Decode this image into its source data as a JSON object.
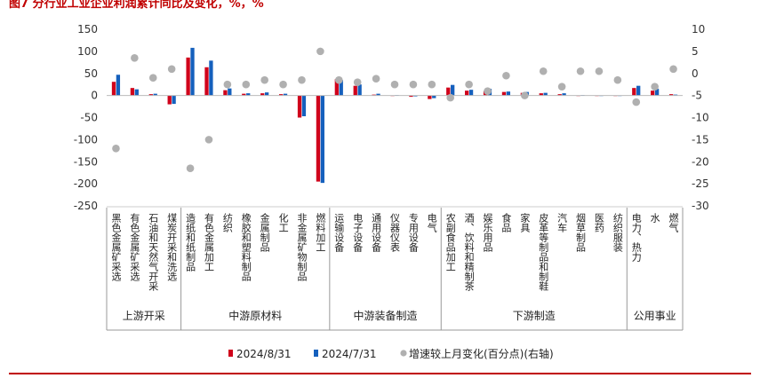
{
  "chart_title": "图7 分行业工业企业利润累计同比及变化，%，%",
  "colors": {
    "series_a": "#d0021b",
    "series_b": "#1560bd",
    "series_c": "#b0b0b0",
    "rule": "#c00000"
  },
  "chart_data": {
    "type": "bar",
    "y_left": {
      "min": -250,
      "max": 150,
      "ticks": [
        150,
        100,
        50,
        0,
        -50,
        -100,
        -150,
        -200,
        -250
      ]
    },
    "y_right": {
      "min": -30,
      "max": 10,
      "ticks": [
        10,
        5,
        0,
        -5,
        -10,
        -15,
        -20,
        -25,
        -30
      ]
    },
    "categories": [
      "黑色金属矿采选",
      "有色金属矿采选",
      "石油和天然气开采",
      "煤炭开采和洗选",
      "造纸和纸制品",
      "有色金属加工",
      "纺织",
      "橡胶和塑料制品",
      "金属制品",
      "化工",
      "非金属矿物制品",
      "燃料加工",
      "运输设备",
      "电子设备",
      "通用设备",
      "仪器仪表",
      "专用设备",
      "电气",
      "农副食品加工",
      "酒、饮料和精制茶",
      "娱乐用品",
      "食品",
      "家具",
      "皮革等制品和制鞋",
      "汽车",
      "烟草制品",
      "医药",
      "纺织服装",
      "电力、热力",
      "水",
      "燃气"
    ],
    "series": [
      {
        "name": "2024/8/31",
        "axis": "left",
        "type": "bar",
        "values": [
          31,
          17,
          3,
          -20,
          86,
          64,
          12,
          4,
          5,
          3,
          -50,
          -195,
          37,
          22,
          2,
          0,
          -3,
          -8,
          18,
          11,
          10,
          8,
          6,
          5,
          3,
          0,
          0,
          0,
          17,
          11,
          3
        ]
      },
      {
        "name": "2024/7/31",
        "axis": "left",
        "type": "bar",
        "values": [
          47,
          14,
          4,
          -19,
          108,
          79,
          16,
          5,
          7,
          4,
          -47,
          -198,
          35,
          25,
          4,
          1,
          -2,
          -6,
          24,
          13,
          15,
          9,
          8,
          6,
          5,
          1,
          -1,
          -1,
          22,
          15,
          2
        ]
      },
      {
        "name": "增速较上月变化(百分点)(右轴)",
        "axis": "right",
        "type": "scatter",
        "values": [
          -17,
          3.5,
          -1,
          1,
          -21.5,
          -15,
          -2.5,
          -2.5,
          -1.5,
          -2.5,
          -1.5,
          5,
          -1.5,
          -2,
          -1.2,
          -2.5,
          -2.5,
          -2.5,
          -5.5,
          -2.5,
          -4,
          -0.5,
          -5,
          0.5,
          -3,
          0.5,
          0.5,
          -1.5,
          -6.5,
          -3,
          1
        ]
      }
    ],
    "groups": [
      {
        "name": "上游开采",
        "count": 4
      },
      {
        "name": "中游原材料",
        "count": 8
      },
      {
        "name": "中游装备制造",
        "count": 6
      },
      {
        "name": "下游制造",
        "count": 10
      },
      {
        "name": "公用事业",
        "count": 3
      }
    ],
    "legend_position": "bottom"
  }
}
